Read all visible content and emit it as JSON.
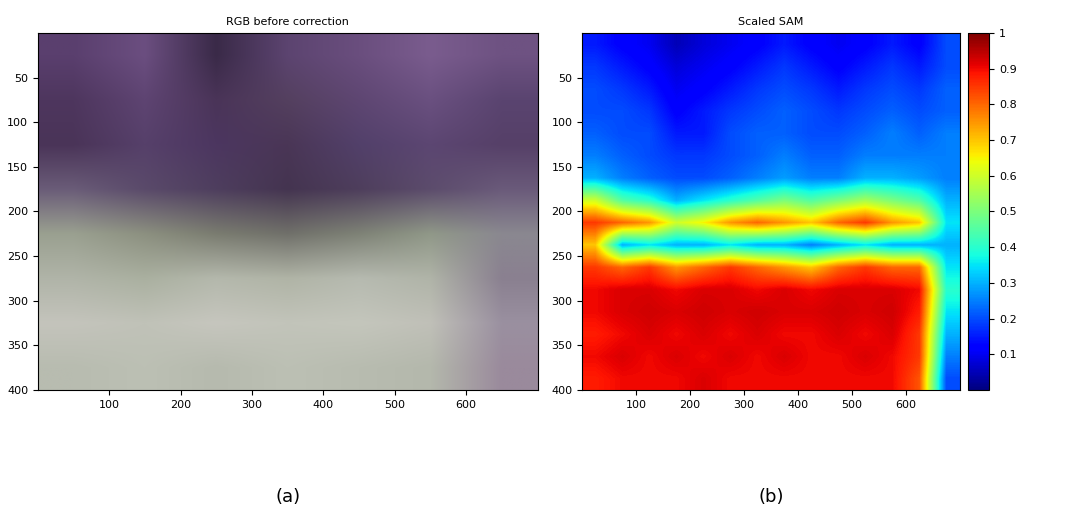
{
  "chart_data": [
    {
      "type": "image",
      "title": "RGB before correction",
      "annotation": "(a)",
      "xlim": [
        0,
        700
      ],
      "ylim": [
        400,
        0
      ],
      "xticks": [
        100,
        200,
        300,
        400,
        500,
        600
      ],
      "yticks": [
        50,
        100,
        150,
        200,
        250,
        300,
        350,
        400
      ],
      "colors": [
        [
          "#5a3f6e",
          "#6b4e80",
          "#3a2a48",
          "#5c4470",
          "#6a4e7e",
          "#7a5c8e",
          "#6e5282"
        ],
        [
          "#4e365e",
          "#5e4472",
          "#4a3458",
          "#54405f",
          "#5e4672",
          "#6a5080",
          "#5a4470"
        ],
        [
          "#4a3458",
          "#56406a",
          "#4c3660",
          "#4a3656",
          "#52406a",
          "#5c4672",
          "#564068"
        ],
        [
          "#6a5c78",
          "#5a4a6a",
          "#4e3e5e",
          "#443450",
          "#4e3e5c",
          "#5c4c6c",
          "#6a5a7a"
        ],
        [
          "#9aa090",
          "#8c9080",
          "#7a7c70",
          "#70706a",
          "#7e8276",
          "#909888",
          "#8a8890"
        ],
        [
          "#b0b4a8",
          "#aab0a0",
          "#b4b8ac",
          "#b0b4a6",
          "#b6bab0",
          "#b0b4a8",
          "#8a8090"
        ],
        [
          "#c4c4bc",
          "#c0c2b8",
          "#c6c6be",
          "#c2c4ba",
          "#c4c6bc",
          "#c0c0b8",
          "#9a90a0"
        ],
        [
          "#b8bcb0",
          "#bcc0b4",
          "#b6baae",
          "#bcc0b4",
          "#b8bcb0",
          "#b4b8ac",
          "#9a8a9c"
        ]
      ]
    },
    {
      "type": "heatmap",
      "title": "Scaled SAM",
      "annotation": "(b)",
      "xlim": [
        0,
        700
      ],
      "ylim": [
        400,
        0
      ],
      "xticks": [
        100,
        200,
        300,
        400,
        500,
        600
      ],
      "yticks": [
        50,
        100,
        150,
        200,
        250,
        300,
        350,
        400
      ],
      "colorbar_range": [
        0,
        1
      ],
      "colorbar_ticks": [
        0.1,
        0.2,
        0.3,
        0.4,
        0.5,
        0.6,
        0.7,
        0.8,
        0.9,
        1
      ],
      "cells": [
        [
          0.15,
          0.12,
          0.1,
          0.05,
          0.08,
          0.1,
          0.12,
          0.15,
          0.12,
          0.1,
          0.12,
          0.15,
          0.12,
          0.2
        ],
        [
          0.18,
          0.15,
          0.12,
          0.08,
          0.1,
          0.12,
          0.15,
          0.18,
          0.15,
          0.12,
          0.15,
          0.18,
          0.15,
          0.2
        ],
        [
          0.2,
          0.18,
          0.15,
          0.1,
          0.12,
          0.15,
          0.18,
          0.2,
          0.18,
          0.15,
          0.18,
          0.2,
          0.18,
          0.22
        ],
        [
          0.2,
          0.2,
          0.18,
          0.12,
          0.15,
          0.18,
          0.2,
          0.22,
          0.2,
          0.18,
          0.2,
          0.22,
          0.2,
          0.22
        ],
        [
          0.22,
          0.2,
          0.2,
          0.15,
          0.15,
          0.2,
          0.22,
          0.22,
          0.2,
          0.2,
          0.22,
          0.25,
          0.22,
          0.25
        ],
        [
          0.25,
          0.22,
          0.2,
          0.18,
          0.18,
          0.2,
          0.22,
          0.25,
          0.22,
          0.22,
          0.25,
          0.25,
          0.25,
          0.25
        ],
        [
          0.3,
          0.25,
          0.22,
          0.2,
          0.2,
          0.22,
          0.25,
          0.28,
          0.25,
          0.25,
          0.3,
          0.3,
          0.28,
          0.25
        ],
        [
          0.6,
          0.45,
          0.4,
          0.3,
          0.35,
          0.4,
          0.45,
          0.5,
          0.45,
          0.5,
          0.55,
          0.5,
          0.45,
          0.3
        ],
        [
          0.85,
          0.8,
          0.75,
          0.6,
          0.65,
          0.75,
          0.8,
          0.75,
          0.7,
          0.8,
          0.85,
          0.75,
          0.7,
          0.35
        ],
        [
          0.7,
          0.3,
          0.35,
          0.3,
          0.3,
          0.35,
          0.3,
          0.3,
          0.25,
          0.3,
          0.35,
          0.3,
          0.3,
          0.3
        ],
        [
          0.85,
          0.8,
          0.85,
          0.75,
          0.8,
          0.85,
          0.8,
          0.75,
          0.7,
          0.8,
          0.85,
          0.8,
          0.8,
          0.35
        ],
        [
          0.9,
          0.92,
          0.92,
          0.9,
          0.92,
          0.92,
          0.9,
          0.92,
          0.9,
          0.92,
          0.92,
          0.92,
          0.9,
          0.4
        ],
        [
          0.9,
          0.92,
          0.93,
          0.92,
          0.93,
          0.92,
          0.93,
          0.92,
          0.92,
          0.93,
          0.92,
          0.93,
          0.88,
          0.35
        ],
        [
          0.88,
          0.9,
          0.92,
          0.9,
          0.92,
          0.9,
          0.92,
          0.9,
          0.9,
          0.92,
          0.9,
          0.92,
          0.85,
          0.3
        ],
        [
          0.9,
          0.92,
          0.9,
          0.92,
          0.9,
          0.92,
          0.9,
          0.92,
          0.9,
          0.9,
          0.92,
          0.9,
          0.85,
          0.25
        ],
        [
          0.88,
          0.9,
          0.9,
          0.9,
          0.92,
          0.9,
          0.9,
          0.9,
          0.9,
          0.9,
          0.9,
          0.9,
          0.82,
          0.2
        ]
      ]
    }
  ]
}
